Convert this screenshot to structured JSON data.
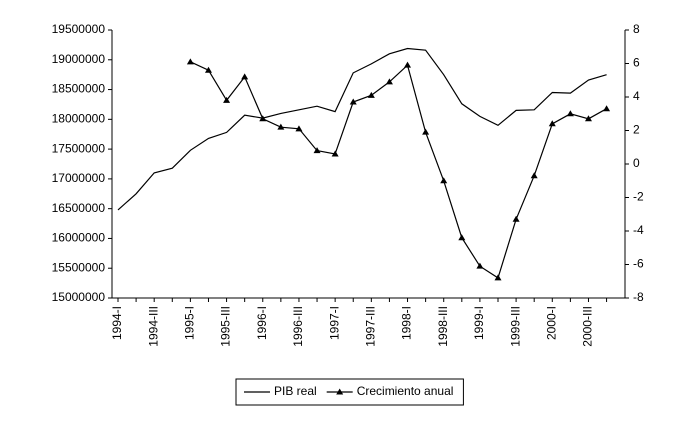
{
  "chart_data": {
    "type": "line",
    "categories": [
      "1994-I",
      null,
      "1994-III",
      null,
      "1995-I",
      null,
      "1995-III",
      null,
      "1996-I",
      null,
      "1996-III",
      null,
      "1997-I",
      null,
      "1997-III",
      null,
      "1998-I",
      null,
      "1998-III",
      null,
      "1999-I",
      null,
      "1999-III",
      null,
      "2000-I",
      null,
      "2000-III",
      null
    ],
    "series": [
      {
        "name": "PIB real",
        "color": "#000000",
        "values": [
          16480000,
          16750000,
          17100000,
          17180000,
          17480000,
          17680000,
          17780000,
          18070000,
          18020000,
          18100000,
          18160000,
          18220000,
          18130000,
          18780000,
          18930000,
          19100000,
          19190000,
          19160000,
          18750000,
          18260000,
          18050000,
          17900000,
          18150000,
          18160000,
          18450000,
          18440000,
          18660000,
          18750000
        ]
      },
      {
        "name": "Crecimiento anual",
        "color": "#000000",
        "axis": "y2",
        "values": [
          null,
          null,
          null,
          null,
          6.1,
          5.6,
          3.8,
          5.2,
          2.7,
          2.2,
          2.1,
          0.8,
          0.6,
          3.7,
          4.1,
          4.9,
          5.9,
          1.9,
          -1.0,
          -4.4,
          -6.1,
          -6.8,
          -3.3,
          -0.7,
          2.4,
          3.0,
          2.7,
          3.3
        ]
      }
    ],
    "ylim": [
      15000000,
      19500000
    ],
    "yticks": [
      15000000,
      15500000,
      16000000,
      16500000,
      17000000,
      17500000,
      18000000,
      18500000,
      19000000,
      19500000
    ],
    "y2lim": [
      -8,
      8
    ],
    "y2ticks": [
      -8,
      -6,
      -4,
      -2,
      0,
      2,
      4,
      6,
      8
    ],
    "legend": "bottom"
  }
}
